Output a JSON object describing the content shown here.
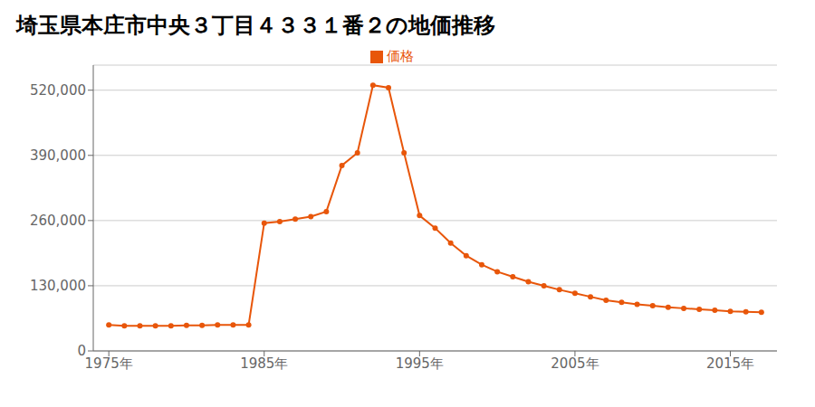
{
  "chart_data": {
    "type": "line",
    "title": "埼玉県本庄市中央３丁目４３３１番２の地価推移",
    "x": [
      1975,
      1976,
      1977,
      1978,
      1979,
      1980,
      1981,
      1982,
      1983,
      1984,
      1985,
      1986,
      1987,
      1988,
      1989,
      1990,
      1991,
      1992,
      1993,
      1994,
      1995,
      1996,
      1997,
      1998,
      1999,
      2000,
      2001,
      2002,
      2003,
      2004,
      2005,
      2006,
      2007,
      2008,
      2009,
      2010,
      2011,
      2012,
      2013,
      2014,
      2015,
      2016,
      2017
    ],
    "series": [
      {
        "name": "価格",
        "color": "#e8560a",
        "marker": "circle",
        "values": [
          52000,
          50000,
          50000,
          50000,
          50000,
          51000,
          51000,
          52000,
          52000,
          52000,
          255000,
          258000,
          263000,
          268000,
          278000,
          370000,
          395000,
          530000,
          525000,
          395000,
          270000,
          245000,
          215000,
          190000,
          172000,
          158000,
          148000,
          138000,
          130000,
          122000,
          115000,
          108000,
          101000,
          97000,
          93000,
          90000,
          87000,
          85000,
          83000,
          81000,
          79000,
          78000,
          77000
        ]
      }
    ],
    "xlim": [
      1974,
      2018
    ],
    "xticks": [
      {
        "value": 1975,
        "label": "1975年"
      },
      {
        "value": 1985,
        "label": "1985年"
      },
      {
        "value": 1995,
        "label": "1995年"
      },
      {
        "value": 2005,
        "label": "2005年"
      },
      {
        "value": 2015,
        "label": "2015年"
      }
    ],
    "ylim": [
      0,
      570000
    ],
    "yticks": [
      0,
      {
        "value": 130000,
        "label": "130,000"
      },
      {
        "value": 260000,
        "label": "260,000"
      },
      {
        "value": 390000,
        "label": "390,000"
      },
      {
        "value": 520000,
        "label": "520,000"
      }
    ],
    "grid": "y",
    "legend": "top"
  }
}
